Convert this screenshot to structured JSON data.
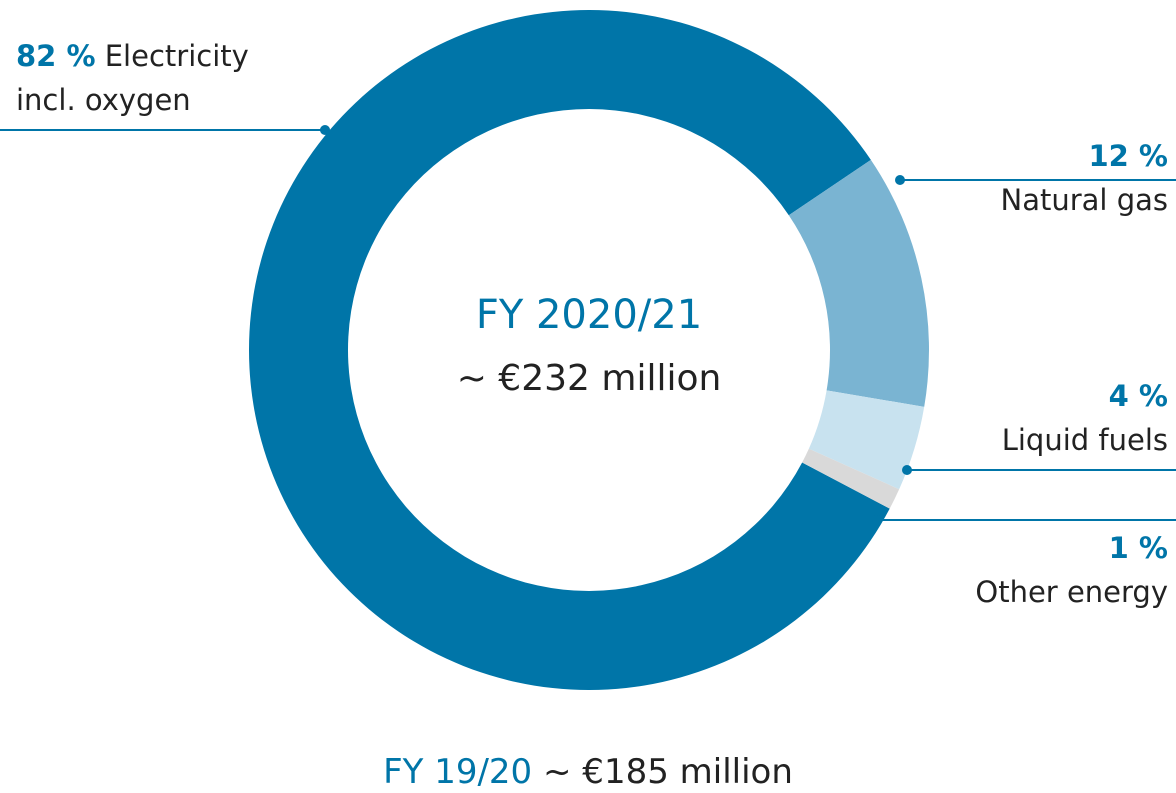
{
  "chart_data": {
    "type": "pie",
    "center_title": "FY 2020/21",
    "center_subtitle": "~ €232 million",
    "footer": {
      "label": "FY 19/20",
      "value": "~ €185 million"
    },
    "categories": [
      "Electricity incl. oxygen",
      "Natural gas",
      "Liquid fuels",
      "Other energy"
    ],
    "values": [
      82,
      12,
      4,
      1
    ],
    "value_labels": [
      "82 %",
      "12 %",
      "4 %",
      "1 %"
    ],
    "colors": [
      "#0075a8",
      "#7ab4d2",
      "#c8e2ef",
      "#d9d9d9"
    ]
  }
}
